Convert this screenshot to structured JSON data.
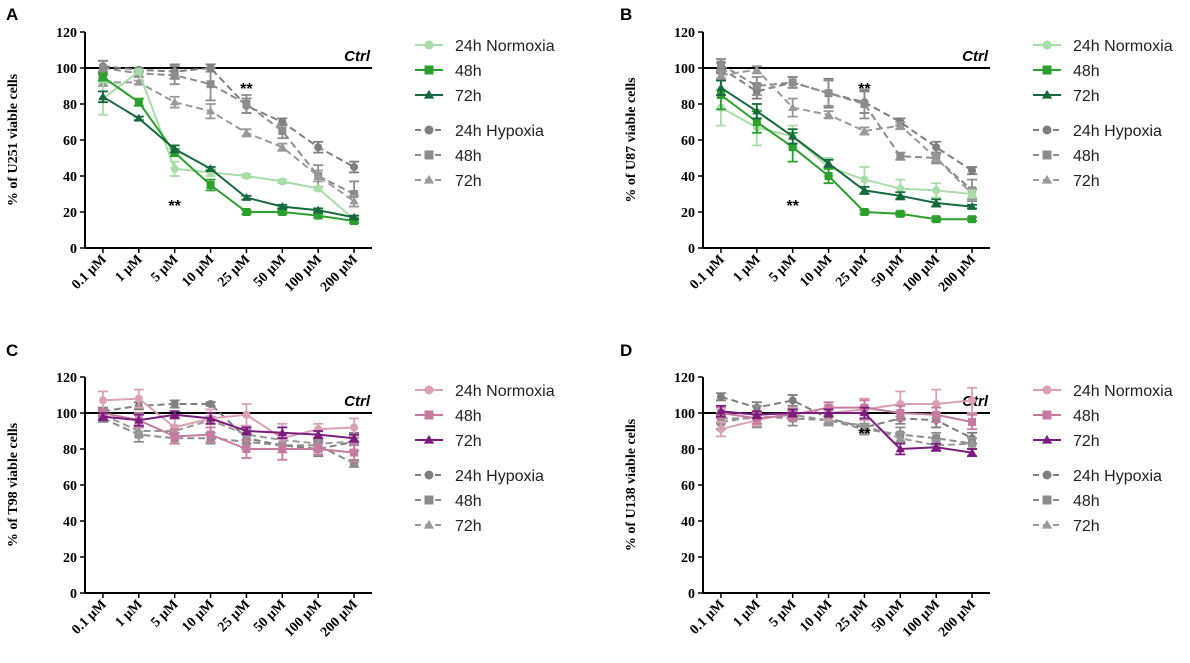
{
  "figure": {
    "tick_unit": "µM"
  },
  "colors": {
    "u_light": "#a8dca8",
    "u_mid": "#2ca02c",
    "u_dark": "#156a3c",
    "t_light": "#dca0b4",
    "t_mid": "#c77a9f",
    "t_dark": "#7b1c7e",
    "grey_a": "#7f7f7f",
    "grey_b": "#8c8c8c",
    "grey_c": "#999999"
  },
  "chart_data": [
    {
      "panel": "A",
      "type": "line",
      "ylabel": "% of U251 viable cells",
      "categories": [
        "0.1 µM",
        "1 µM",
        "5 µM",
        "10 µM",
        "25 µM",
        "50 µM",
        "100 µM",
        "200 µM"
      ],
      "ylim": [
        0,
        120
      ],
      "yticks": [
        "0",
        "20",
        "40",
        "60",
        "80",
        "100",
        "120"
      ],
      "ctrl_value": 100,
      "ctrl_label": "Ctrl",
      "annotations": [
        {
          "text": "**",
          "category": 2,
          "y": 24
        },
        {
          "text": "**",
          "category": 4,
          "y": 89
        }
      ],
      "legend": {
        "normoxia_title": "24h Normoxia",
        "hypoxia_title": "24h Hypoxia",
        "labels": [
          "24h Normoxia",
          "48h",
          "72h",
          "24h Hypoxia",
          "48h",
          "72h"
        ]
      },
      "series": [
        {
          "name": "24h Normoxia",
          "color": "u_light",
          "marker": "circle",
          "dash": false,
          "values": [
            83,
            98,
            44,
            42,
            40,
            37,
            33,
            16
          ],
          "errors": [
            9,
            1,
            4,
            2,
            1,
            1,
            1,
            1
          ]
        },
        {
          "name": "48h Normoxia",
          "color": "u_mid",
          "marker": "square",
          "dash": false,
          "values": [
            95,
            81,
            53,
            35,
            20,
            20,
            18,
            15
          ],
          "errors": [
            2,
            2,
            2,
            3,
            1,
            1,
            1,
            1
          ]
        },
        {
          "name": "72h Normoxia",
          "color": "u_dark",
          "marker": "triangle",
          "dash": false,
          "values": [
            84,
            72,
            55,
            44,
            28,
            23,
            21,
            17
          ],
          "errors": [
            3,
            1,
            2,
            1,
            1,
            1,
            1,
            1
          ]
        },
        {
          "name": "24h Hypoxia",
          "color": "grey_a",
          "marker": "circle",
          "dash": true,
          "values": [
            101,
            99,
            98,
            100,
            79,
            70,
            56,
            45
          ],
          "errors": [
            3,
            1,
            4,
            2,
            4,
            2,
            3,
            3
          ]
        },
        {
          "name": "48h Hypoxia",
          "color": "grey_b",
          "marker": "square",
          "dash": true,
          "values": [
            100,
            97,
            96,
            91,
            80,
            65,
            40,
            30
          ],
          "errors": [
            4,
            2,
            5,
            9,
            5,
            4,
            6,
            7
          ]
        },
        {
          "name": "72h Hypoxia",
          "color": "grey_c",
          "marker": "triangle",
          "dash": true,
          "values": [
            92,
            92,
            81,
            76,
            64,
            56,
            40,
            26
          ],
          "errors": [
            2,
            1,
            3,
            4,
            2,
            2,
            3,
            3
          ]
        }
      ]
    },
    {
      "panel": "B",
      "type": "line",
      "ylabel": "% of U87 viable cells",
      "categories": [
        "0.1 µM",
        "1 µM",
        "5 µM",
        "10 µM",
        "25 µM",
        "50 µM",
        "100 µM",
        "200 µM"
      ],
      "ylim": [
        0,
        120
      ],
      "yticks": [
        "0",
        "20",
        "40",
        "60",
        "80",
        "100",
        "120"
      ],
      "ctrl_value": 100,
      "ctrl_label": "Ctrl",
      "annotations": [
        {
          "text": "**",
          "category": 2,
          "y": 24
        },
        {
          "text": "**",
          "category": 4,
          "y": 89
        }
      ],
      "legend": {
        "normoxia_title": "24h Normoxia",
        "hypoxia_title": "24h Hypoxia",
        "labels": [
          "24h Normoxia",
          "48h",
          "72h",
          "24h Hypoxia",
          "48h",
          "72h"
        ]
      },
      "series": [
        {
          "name": "24h Normoxia",
          "color": "u_light",
          "marker": "circle",
          "dash": false,
          "values": [
            78,
            67,
            62,
            45,
            38,
            33,
            32,
            30
          ],
          "errors": [
            10,
            10,
            6,
            5,
            7,
            5,
            4,
            2
          ]
        },
        {
          "name": "48h Normoxia",
          "color": "u_mid",
          "marker": "square",
          "dash": false,
          "values": [
            85,
            70,
            56,
            40,
            20,
            19,
            16,
            16
          ],
          "errors": [
            8,
            6,
            8,
            4,
            1,
            1,
            1,
            1
          ]
        },
        {
          "name": "72h Normoxia",
          "color": "u_dark",
          "marker": "triangle",
          "dash": false,
          "values": [
            89,
            76,
            62,
            47,
            32,
            29,
            25,
            23
          ],
          "errors": [
            4,
            4,
            4,
            2,
            2,
            2,
            2,
            1
          ]
        },
        {
          "name": "24h Hypoxia",
          "color": "grey_a",
          "marker": "circle",
          "dash": true,
          "values": [
            100,
            87,
            92,
            86,
            81,
            70,
            56,
            43
          ],
          "errors": [
            3,
            4,
            3,
            8,
            6,
            2,
            3,
            2
          ]
        },
        {
          "name": "48h Hypoxia",
          "color": "grey_b",
          "marker": "square",
          "dash": true,
          "values": [
            102,
            90,
            92,
            86,
            80,
            51,
            50,
            32
          ],
          "errors": [
            3,
            5,
            3,
            7,
            8,
            2,
            3,
            6
          ]
        },
        {
          "name": "72h Hypoxia",
          "color": "grey_c",
          "marker": "triangle",
          "dash": true,
          "values": [
            96,
            99,
            78,
            74,
            65,
            68,
            50,
            30
          ],
          "errors": [
            2,
            2,
            5,
            2,
            2,
            2,
            2,
            3
          ]
        }
      ]
    },
    {
      "panel": "C",
      "type": "line",
      "ylabel": "% of T98 viable cells",
      "categories": [
        "0.1 µM",
        "1 µM",
        "5 µM",
        "10 µM",
        "25 µM",
        "50 µM",
        "100 µM",
        "200 µM"
      ],
      "ylim": [
        0,
        120
      ],
      "yticks": [
        "0",
        "20",
        "40",
        "60",
        "80",
        "100",
        "120"
      ],
      "ctrl_value": 100,
      "ctrl_label": "Ctrl",
      "annotations": [],
      "legend": {
        "normoxia_title": "24h Normoxia",
        "hypoxia_title": "24h Hypoxia",
        "labels": [
          "24h Normoxia",
          "48h",
          "72h",
          "24h Hypoxia",
          "48h",
          "72h"
        ]
      },
      "series": [
        {
          "name": "24h Normoxia",
          "color": "t_light",
          "marker": "circle",
          "dash": false,
          "values": [
            107,
            108,
            92,
            97,
            99,
            86,
            91,
            92
          ],
          "errors": [
            5,
            5,
            6,
            5,
            6,
            8,
            3,
            5
          ]
        },
        {
          "name": "48h Normoxia",
          "color": "t_mid",
          "marker": "square",
          "dash": false,
          "values": [
            100,
            96,
            87,
            88,
            80,
            80,
            80,
            78
          ],
          "errors": [
            2,
            4,
            4,
            4,
            5,
            6,
            3,
            5
          ]
        },
        {
          "name": "72h Normoxia",
          "color": "t_dark",
          "marker": "triangle",
          "dash": false,
          "values": [
            98,
            96,
            99,
            97,
            90,
            89,
            88,
            86
          ],
          "errors": [
            2,
            3,
            2,
            3,
            2,
            3,
            2,
            2
          ]
        },
        {
          "name": "24h Hypoxia",
          "color": "grey_a",
          "marker": "circle",
          "dash": true,
          "values": [
            101,
            104,
            105,
            105,
            86,
            82,
            80,
            84
          ],
          "errors": [
            2,
            2,
            2,
            1,
            3,
            4,
            4,
            5
          ]
        },
        {
          "name": "48h Hypoxia",
          "color": "grey_b",
          "marker": "square",
          "dash": true,
          "values": [
            97,
            88,
            86,
            86,
            84,
            82,
            82,
            72
          ],
          "errors": [
            2,
            4,
            3,
            3,
            4,
            4,
            3,
            2
          ]
        },
        {
          "name": "72h Hypoxia",
          "color": "grey_c",
          "marker": "triangle",
          "dash": true,
          "values": [
            99,
            90,
            90,
            96,
            88,
            85,
            83,
            84
          ],
          "errors": [
            2,
            3,
            3,
            2,
            3,
            3,
            3,
            2
          ]
        }
      ]
    },
    {
      "panel": "D",
      "type": "line",
      "ylabel": "% of U138 viable cells",
      "categories": [
        "0.1 µM",
        "1 µM",
        "5 µM",
        "10 µM",
        "25 µM",
        "50 µM",
        "100 µM",
        "200 µM"
      ],
      "ylim": [
        0,
        120
      ],
      "yticks": [
        "0",
        "20",
        "40",
        "60",
        "80",
        "100",
        "120"
      ],
      "ctrl_value": 100,
      "ctrl_label": "Ctrl",
      "annotations": [
        {
          "text": "**",
          "category": 4,
          "y": 89
        }
      ],
      "legend": {
        "normoxia_title": "24h Normoxia",
        "hypoxia_title": "24h Hypoxia",
        "labels": [
          "24h Normoxia",
          "48h",
          "72h",
          "24h Hypoxia",
          "48h",
          "72h"
        ]
      },
      "series": [
        {
          "name": "24h Normoxia",
          "color": "t_light",
          "marker": "circle",
          "dash": false,
          "values": [
            91,
            96,
            100,
            100,
            102,
            105,
            105,
            107
          ],
          "errors": [
            4,
            3,
            3,
            4,
            6,
            7,
            8,
            7
          ]
        },
        {
          "name": "48h Normoxia",
          "color": "t_mid",
          "marker": "square",
          "dash": false,
          "values": [
            100,
            97,
            99,
            103,
            103,
            100,
            99,
            95
          ],
          "errors": [
            3,
            3,
            3,
            3,
            4,
            4,
            4,
            4
          ]
        },
        {
          "name": "72h Normoxia",
          "color": "t_dark",
          "marker": "triangle",
          "dash": false,
          "values": [
            101,
            99,
            100,
            100,
            100,
            80,
            81,
            78
          ],
          "errors": [
            3,
            2,
            2,
            2,
            3,
            3,
            2,
            2
          ]
        },
        {
          "name": "24h Hypoxia",
          "color": "grey_a",
          "marker": "circle",
          "dash": true,
          "values": [
            109,
            103,
            107,
            97,
            92,
            97,
            96,
            86
          ],
          "errors": [
            2,
            3,
            3,
            3,
            2,
            3,
            4,
            3
          ]
        },
        {
          "name": "48h Hypoxia",
          "color": "grey_b",
          "marker": "square",
          "dash": true,
          "values": [
            95,
            98,
            97,
            96,
            91,
            88,
            86,
            83
          ],
          "errors": [
            4,
            6,
            4,
            3,
            3,
            4,
            3,
            3
          ]
        },
        {
          "name": "72h Hypoxia",
          "color": "grey_c",
          "marker": "triangle",
          "dash": true,
          "values": [
            97,
            97,
            99,
            96,
            93,
            86,
            82,
            83
          ],
          "errors": [
            3,
            3,
            3,
            3,
            3,
            3,
            3,
            3
          ]
        }
      ]
    }
  ]
}
